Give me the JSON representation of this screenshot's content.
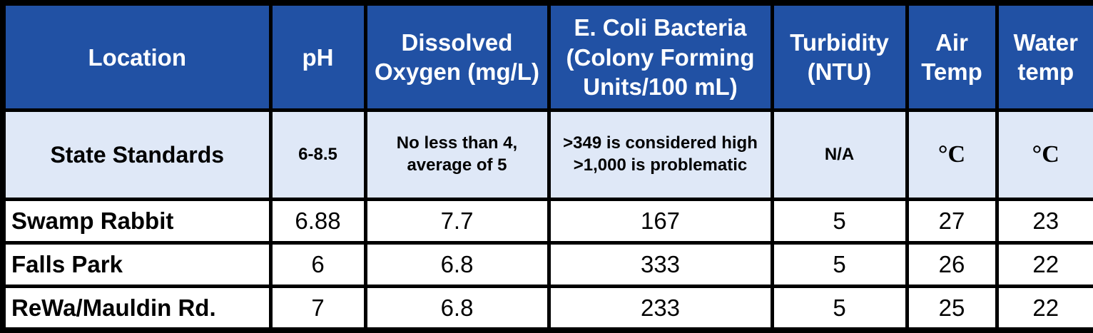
{
  "chart_data": {
    "type": "table",
    "columns": [
      "Location",
      "pH",
      "Dissolved Oxygen (mg/L)",
      "E. Coli Bacteria (Colony Forming Units/100 mL)",
      "Turbidity (NTU)",
      "Air Temp",
      "Water temp"
    ],
    "rows": [
      [
        "State Standards",
        "6-8.5",
        "No less than 4, average of 5",
        ">349 is considered high >1,000 is problematic",
        "N/A",
        "°C",
        "°C"
      ],
      [
        "Swamp Rabbit",
        "6.88",
        "7.7",
        "167",
        "5",
        "27",
        "23"
      ],
      [
        "Falls Park",
        "6",
        "6.8",
        "333",
        "5",
        "26",
        "22"
      ],
      [
        "ReWa/Mauldin Rd.",
        "7",
        "6.8",
        "233",
        "5",
        "25",
        "22"
      ]
    ],
    "layout_hints": {
      "header_bg": "#2151a4",
      "header_text_color": "#ffffff",
      "standards_row_bg": "#dfe8f7",
      "data_row_bg": "#ffffff",
      "border_color": "#000000",
      "location_column_align": "left",
      "value_columns_align": "center"
    }
  },
  "table": {
    "header": {
      "location": "Location",
      "ph": "pH",
      "dissolved_oxygen": "Dissolved Oxygen (mg/L)",
      "e_coli": "E. Coli Bacteria (Colony Forming Units/100 mL)",
      "turbidity": "Turbidity (NTU)",
      "air_temp": "Air Temp",
      "water_temp": "Water temp"
    },
    "standards": {
      "location": "State Standards",
      "ph": "6-8.5",
      "dissolved_oxygen": "No less than 4, average of 5",
      "e_coli": ">349 is considered high >1,000 is problematic",
      "turbidity": "N/A",
      "air_temp": "°C",
      "water_temp": "°C"
    },
    "rows": [
      {
        "location": "Swamp Rabbit",
        "ph": "6.88",
        "dissolved_oxygen": "7.7",
        "e_coli": "167",
        "turbidity": "5",
        "air_temp": "27",
        "water_temp": "23"
      },
      {
        "location": "Falls Park",
        "ph": "6",
        "dissolved_oxygen": "6.8",
        "e_coli": "333",
        "turbidity": "5",
        "air_temp": "26",
        "water_temp": "22"
      },
      {
        "location": "ReWa/Mauldin Rd.",
        "ph": "7",
        "dissolved_oxygen": "6.8",
        "e_coli": "233",
        "turbidity": "5",
        "air_temp": "25",
        "water_temp": "22"
      }
    ],
    "colors": {
      "header_bg": "#2151a4",
      "header_text": "#ffffff",
      "standards_bg": "#dfe8f7",
      "row_bg": "#ffffff",
      "border": "#000000",
      "body_text": "#000000"
    }
  }
}
